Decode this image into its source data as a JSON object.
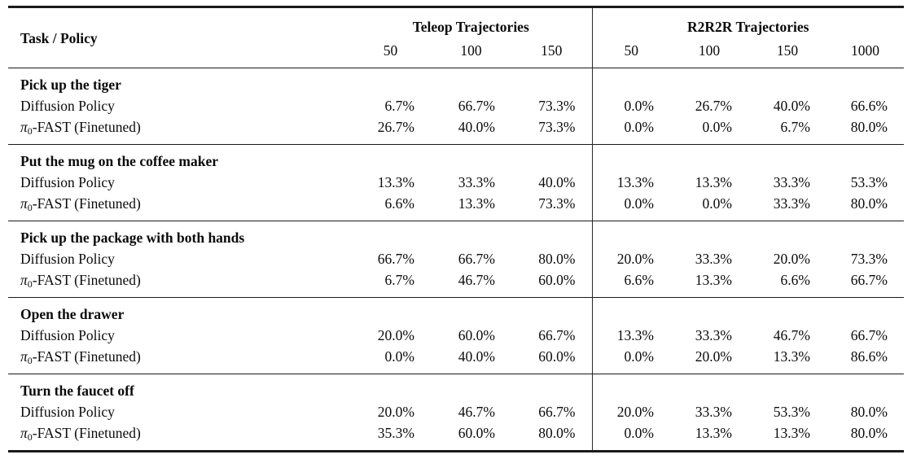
{
  "page": {
    "background": "#ffffff",
    "text_color": "#0b0b0b",
    "rule_color": "#1a1a1a"
  },
  "table": {
    "header": {
      "task_policy_label": "Task / Policy",
      "col_groups": [
        {
          "key": "teleop",
          "label": "Teleop Trajectories",
          "counts": [
            "50",
            "100",
            "150"
          ]
        },
        {
          "key": "r2r2r",
          "label": "R2R2R Trajectories",
          "counts": [
            "50",
            "100",
            "150",
            "1000"
          ]
        }
      ]
    },
    "policies": [
      {
        "text": "Diffusion Policy"
      },
      {
        "italic": "π",
        "sub": "0",
        "text": "-FAST (Finetuned)"
      }
    ],
    "groups": [
      {
        "task": "Pick up the tiger",
        "rows": [
          {
            "policy_index": 0,
            "teleop": [
              "6.7%",
              "66.7%",
              "73.3%"
            ],
            "r2r2r": [
              "0.0%",
              "26.7%",
              "40.0%",
              "66.6%"
            ]
          },
          {
            "policy_index": 1,
            "teleop": [
              "26.7%",
              "40.0%",
              "73.3%"
            ],
            "r2r2r": [
              "0.0%",
              "0.0%",
              "6.7%",
              "80.0%"
            ]
          }
        ]
      },
      {
        "task": "Put the mug on the coffee maker",
        "rows": [
          {
            "policy_index": 0,
            "teleop": [
              "13.3%",
              "33.3%",
              "40.0%"
            ],
            "r2r2r": [
              "13.3%",
              "13.3%",
              "33.3%",
              "53.3%"
            ]
          },
          {
            "policy_index": 1,
            "teleop": [
              "6.6%",
              "13.3%",
              "73.3%"
            ],
            "r2r2r": [
              "0.0%",
              "0.0%",
              "33.3%",
              "80.0%"
            ]
          }
        ]
      },
      {
        "task": "Pick up the package with both hands",
        "rows": [
          {
            "policy_index": 0,
            "teleop": [
              "66.7%",
              "66.7%",
              "80.0%"
            ],
            "r2r2r": [
              "20.0%",
              "33.3%",
              "20.0%",
              "73.3%"
            ]
          },
          {
            "policy_index": 1,
            "teleop": [
              "6.7%",
              "46.7%",
              "60.0%"
            ],
            "r2r2r": [
              "6.6%",
              "13.3%",
              "6.6%",
              "66.7%"
            ]
          }
        ]
      },
      {
        "task": "Open the drawer",
        "rows": [
          {
            "policy_index": 0,
            "teleop": [
              "20.0%",
              "60.0%",
              "66.7%"
            ],
            "r2r2r": [
              "13.3%",
              "33.3%",
              "46.7%",
              "66.7%"
            ]
          },
          {
            "policy_index": 1,
            "teleop": [
              "0.0%",
              "40.0%",
              "60.0%"
            ],
            "r2r2r": [
              "0.0%",
              "20.0%",
              "13.3%",
              "86.6%"
            ]
          }
        ]
      },
      {
        "task": "Turn the faucet off",
        "rows": [
          {
            "policy_index": 0,
            "teleop": [
              "20.0%",
              "46.7%",
              "66.7%"
            ],
            "r2r2r": [
              "20.0%",
              "33.3%",
              "53.3%",
              "80.0%"
            ]
          },
          {
            "policy_index": 1,
            "teleop": [
              "35.3%",
              "60.0%",
              "80.0%"
            ],
            "r2r2r": [
              "0.0%",
              "13.3%",
              "13.3%",
              "80.0%"
            ]
          }
        ]
      }
    ]
  }
}
